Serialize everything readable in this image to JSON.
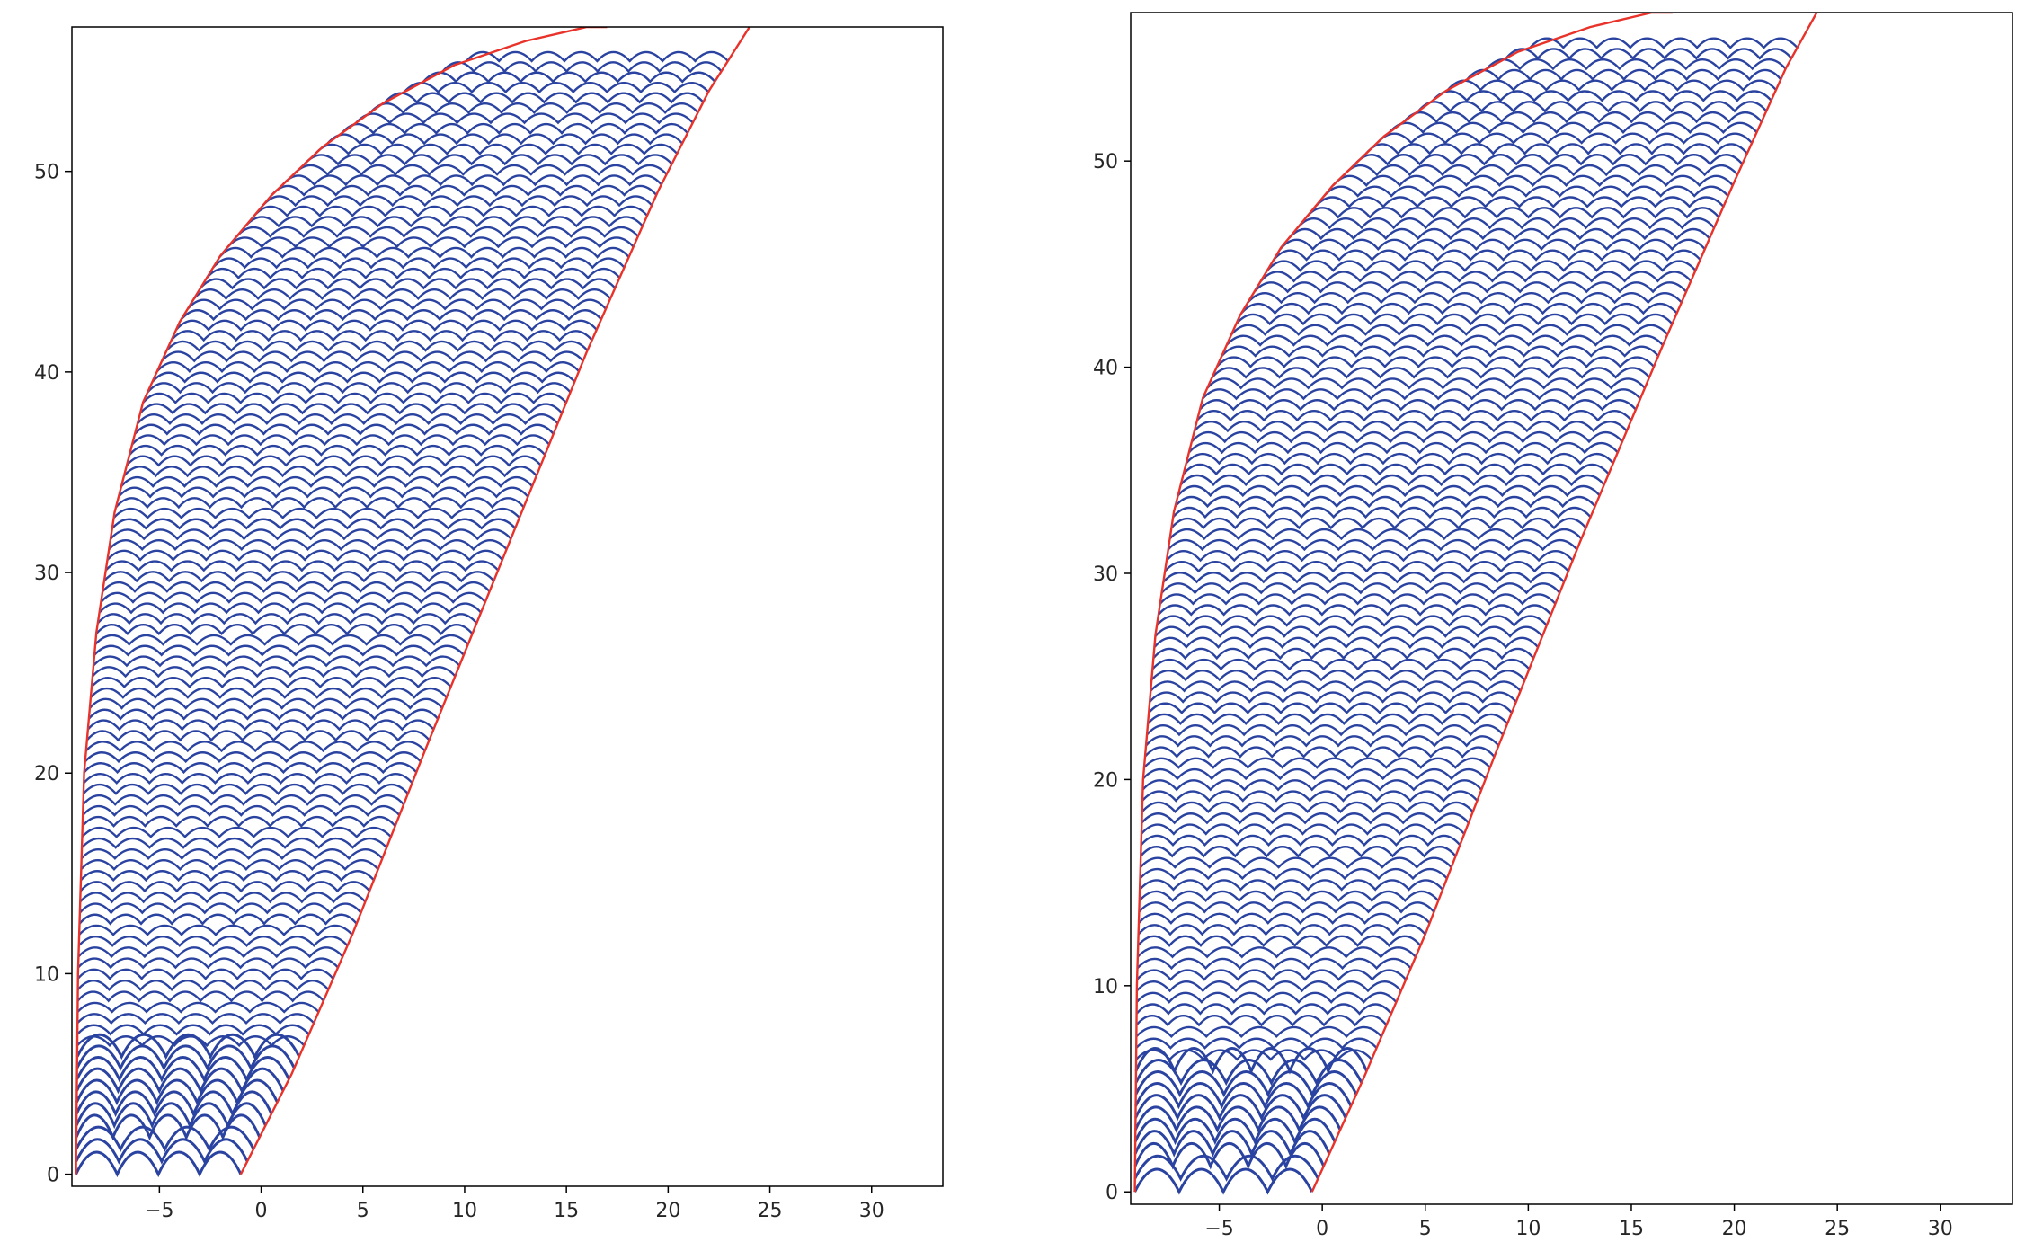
{
  "chart_data": [
    {
      "type": "line",
      "title": "",
      "xlabel": "",
      "ylabel": "",
      "xlim": [
        -9.3,
        33.5
      ],
      "ylim": [
        -0.6,
        57.2
      ],
      "xticks": [
        -5,
        0,
        5,
        10,
        15,
        20,
        25,
        30
      ],
      "xtick_labels": [
        "−5",
        "0",
        "5",
        "10",
        "15",
        "20",
        "25",
        "30"
      ],
      "yticks": [
        0,
        10,
        20,
        30,
        40,
        50
      ],
      "ytick_labels": [
        "0",
        "10",
        "20",
        "30",
        "40",
        "50"
      ],
      "grid": false,
      "series": [
        {
          "role": "left boundary",
          "color": "#e8322a",
          "x": [
            -9.1,
            -9.0,
            -8.7,
            -8.1,
            -7.2,
            -5.8,
            -4.0,
            -2.0,
            0.5,
            3.0,
            6.0,
            9.5,
            13.0,
            16.0,
            17.0
          ],
          "y": [
            0.0,
            10.0,
            20.0,
            27.0,
            33.0,
            38.5,
            42.5,
            45.8,
            48.8,
            51.2,
            53.4,
            55.3,
            56.5,
            57.2,
            57.2
          ]
        },
        {
          "role": "right boundary",
          "color": "#e8322a",
          "x": [
            -1.0,
            1.5,
            4.5,
            8.0,
            12.0,
            16.0,
            19.5,
            22.0,
            24.0
          ],
          "y": [
            0.0,
            5.0,
            12.0,
            21.0,
            31.0,
            41.0,
            49.0,
            54.0,
            57.2
          ]
        },
        {
          "role": "wave arcs",
          "color": "#2a43a0",
          "count": 105,
          "y_start": 0.0,
          "y_end": 55.5
        }
      ]
    },
    {
      "type": "line",
      "title": "",
      "xlabel": "",
      "ylabel": "",
      "xlim": [
        -9.3,
        33.5
      ],
      "ylim": [
        -0.6,
        57.2
      ],
      "xticks": [
        -5,
        0,
        5,
        10,
        15,
        20,
        25,
        30
      ],
      "xtick_labels": [
        "−5",
        "0",
        "5",
        "10",
        "15",
        "20",
        "25",
        "30"
      ],
      "yticks": [
        0,
        10,
        20,
        30,
        40,
        50
      ],
      "ytick_labels": [
        "0",
        "10",
        "20",
        "30",
        "40",
        "50"
      ],
      "grid": false,
      "series": [
        {
          "role": "left boundary",
          "color": "#e8322a",
          "x": [
            -9.1,
            -9.0,
            -8.7,
            -8.1,
            -7.2,
            -5.8,
            -4.0,
            -2.0,
            0.5,
            3.0,
            6.0,
            9.5,
            13.0,
            16.0,
            17.0
          ],
          "y": [
            0.0,
            10.0,
            20.0,
            27.0,
            33.0,
            38.5,
            42.5,
            45.8,
            48.8,
            51.2,
            53.4,
            55.3,
            56.5,
            57.2,
            57.2
          ]
        },
        {
          "role": "right boundary",
          "color": "#e8322a",
          "x": [
            -0.5,
            2.0,
            5.0,
            8.5,
            12.5,
            16.5,
            20.0,
            22.5,
            24.0
          ],
          "y": [
            0.0,
            5.5,
            12.5,
            21.5,
            31.5,
            41.0,
            49.0,
            54.5,
            57.2
          ]
        },
        {
          "role": "wave arcs",
          "color": "#2a43a0",
          "count": 105,
          "y_start": 0.0,
          "y_end": 55.5
        }
      ]
    }
  ]
}
